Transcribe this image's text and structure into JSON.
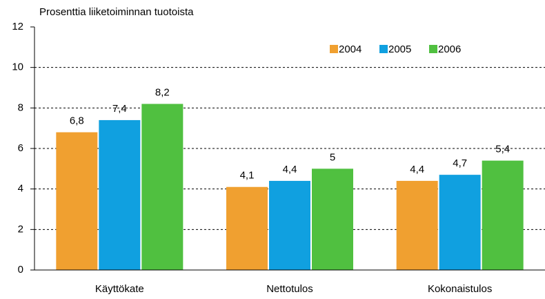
{
  "chart_data": {
    "type": "bar",
    "title": "Prosenttia liiketoiminnan tuotoista",
    "categories": [
      "Käyttökate",
      "Nettotulos",
      "Kokonaistulos"
    ],
    "series": [
      {
        "name": "2004",
        "color": "#f0a030",
        "values": [
          6.8,
          4.1,
          4.4
        ],
        "value_labels": [
          "6,8",
          "4,1",
          "4,4"
        ]
      },
      {
        "name": "2005",
        "color": "#10a0e0",
        "values": [
          7.4,
          4.4,
          4.7
        ],
        "value_labels": [
          "7,4",
          "4,4",
          "4,7"
        ]
      },
      {
        "name": "2006",
        "color": "#50c040",
        "values": [
          8.2,
          5,
          5.4
        ],
        "value_labels": [
          "8,2",
          "5",
          "5,4"
        ]
      }
    ],
    "ylim": [
      0,
      12
    ],
    "yticks": [
      0,
      2,
      4,
      6,
      8,
      10,
      12
    ],
    "grid": true,
    "legend": "top-right"
  }
}
